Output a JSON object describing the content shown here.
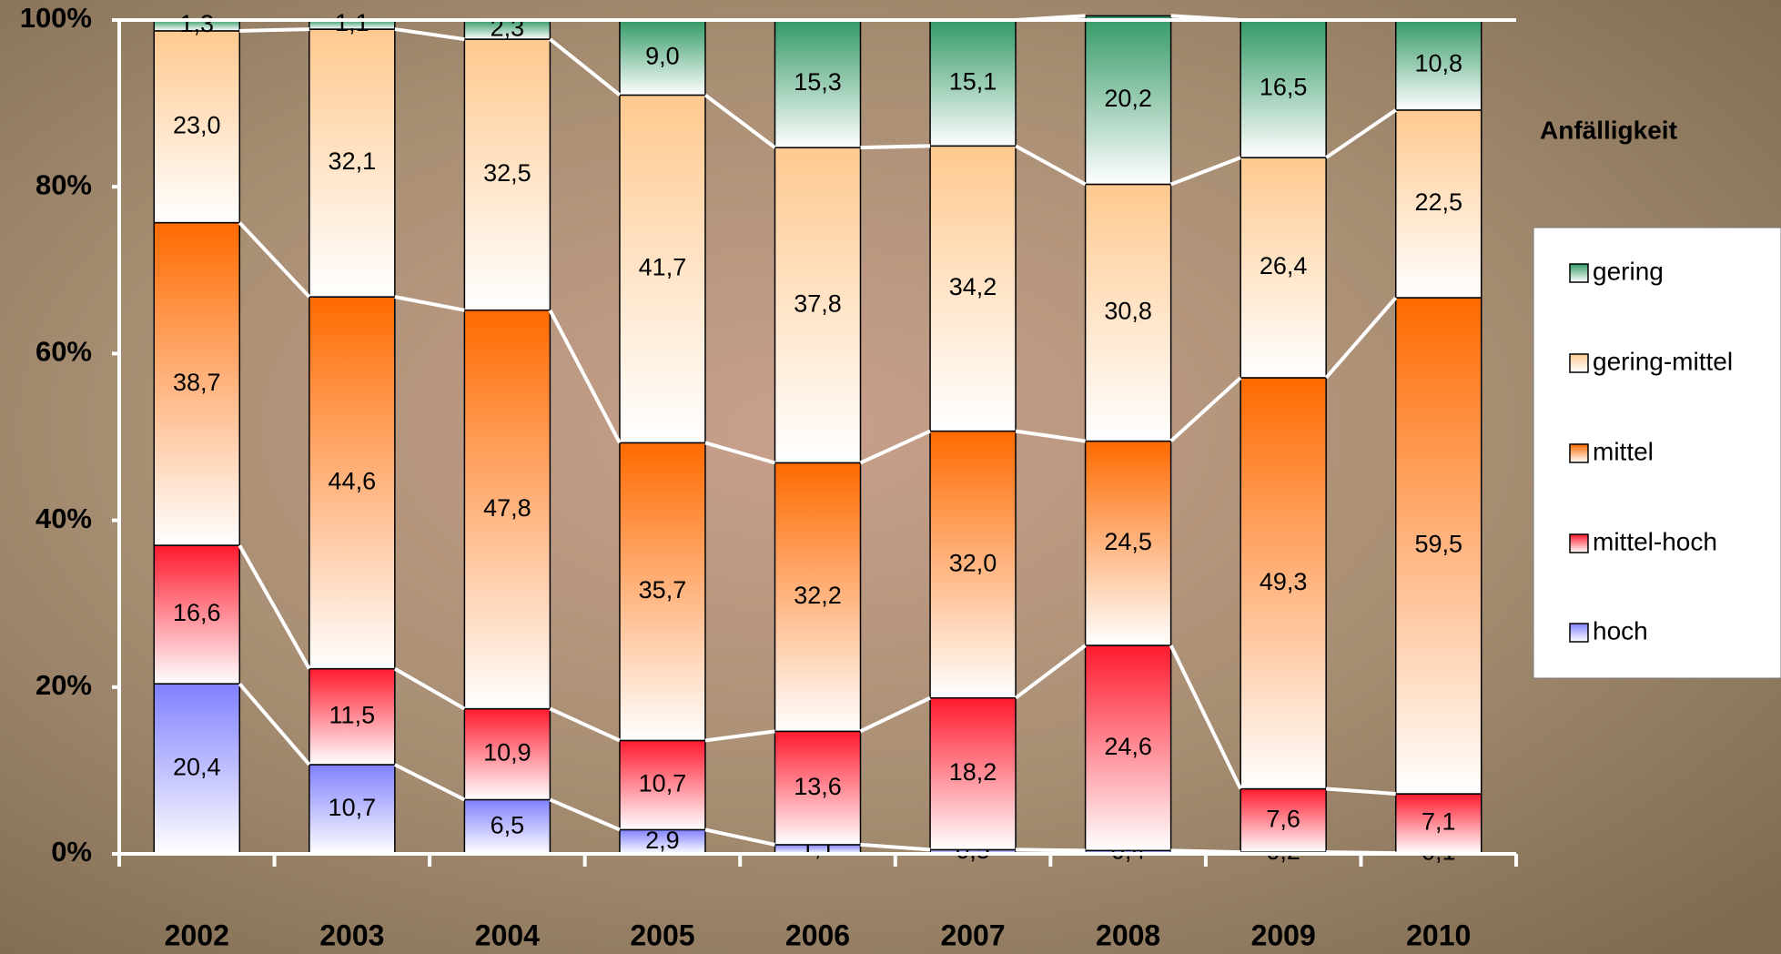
{
  "chart_data": {
    "type": "stacked_bar_100",
    "categories": [
      "2002",
      "2003",
      "2004",
      "2005",
      "2006",
      "2007",
      "2008",
      "2009",
      "2010"
    ],
    "series": [
      {
        "name": "hoch",
        "color": "#8080ff",
        "values": [
          20.4,
          10.7,
          6.5,
          2.9,
          1.1,
          0.5,
          0.4,
          0.2,
          0.1
        ],
        "value_labels": [
          "20,4",
          "10,7",
          "6,5",
          "2,9",
          "1,1",
          "0,5",
          "0,4",
          "0,2",
          "0,1"
        ]
      },
      {
        "name": "mittel-hoch",
        "color": "#ff1a2e",
        "values": [
          16.6,
          11.5,
          10.9,
          10.7,
          13.6,
          18.2,
          24.6,
          7.6,
          7.1
        ],
        "value_labels": [
          "16,6",
          "11,5",
          "10,9",
          "10,7",
          "13,6",
          "18,2",
          "24,6",
          "7,6",
          "7,1"
        ]
      },
      {
        "name": "mittel",
        "color": "#ff6a00",
        "values": [
          38.7,
          44.6,
          47.8,
          35.7,
          32.2,
          32.0,
          24.5,
          49.3,
          59.5
        ],
        "value_labels": [
          "38,7",
          "44,6",
          "47,8",
          "35,7",
          "32,2",
          "32,0",
          "24,5",
          "49,3",
          "59,5"
        ]
      },
      {
        "name": "gering-mittel",
        "color": "#ffc98f",
        "values": [
          23.0,
          32.1,
          32.5,
          41.7,
          37.8,
          34.2,
          30.8,
          26.4,
          22.5
        ],
        "value_labels": [
          "23,0",
          "32,1",
          "32,5",
          "41,7",
          "37,8",
          "34,2",
          "30,8",
          "26,4",
          "22,5"
        ]
      },
      {
        "name": "gering",
        "color": "#339966",
        "values": [
          1.3,
          1.1,
          2.3,
          9.0,
          15.3,
          15.1,
          20.2,
          16.5,
          10.8
        ],
        "value_labels": [
          "1,3",
          "1,1",
          "2,3",
          "9,0",
          "15,3",
          "15,1",
          "20,2",
          "16,5",
          "10,8"
        ]
      }
    ],
    "ylim": [
      0,
      100
    ],
    "yticks": [
      {
        "value": 0,
        "label": "0%"
      },
      {
        "value": 20,
        "label": "20%"
      },
      {
        "value": 40,
        "label": "40%"
      },
      {
        "value": 60,
        "label": "60%"
      },
      {
        "value": 80,
        "label": "80%"
      },
      {
        "value": 100,
        "label": "100%"
      }
    ],
    "legend_title": "Anfälligkeit",
    "legend_position": "right"
  }
}
